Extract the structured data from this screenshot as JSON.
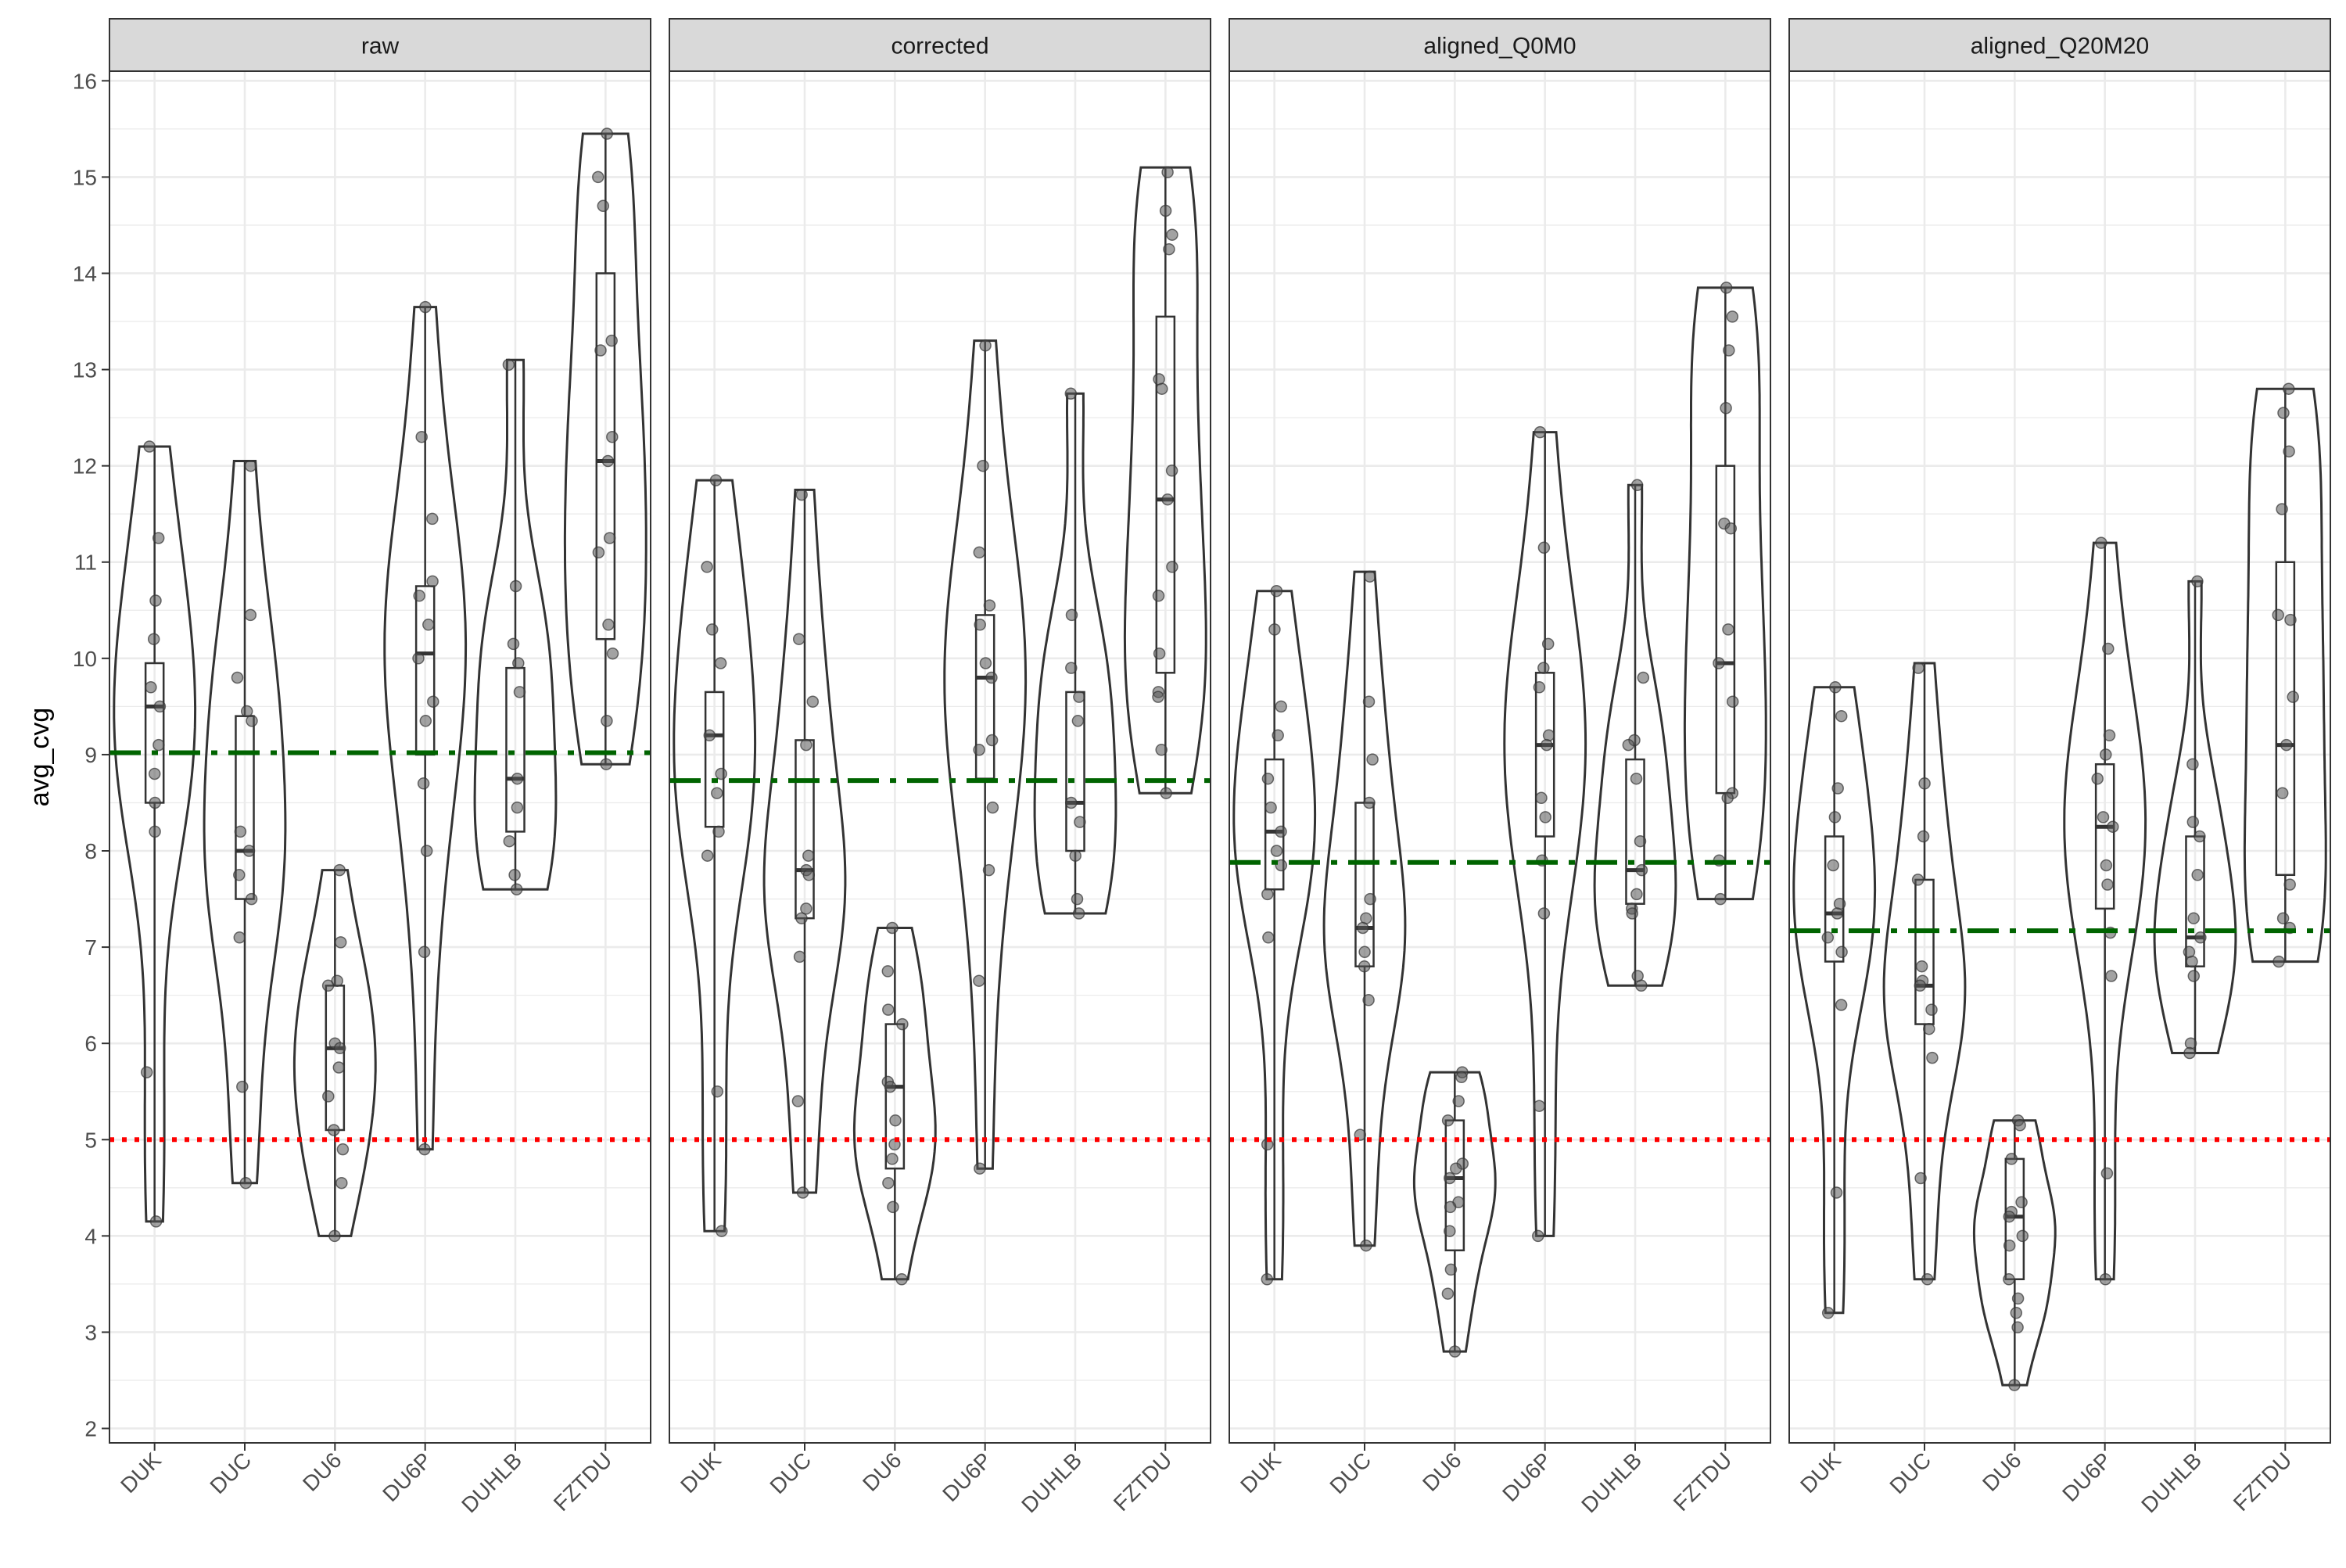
{
  "chart_data": {
    "type": "violin",
    "ylabel": "avg_cvg",
    "ylim": [
      1.85,
      16.1
    ],
    "yticks": [
      2,
      3,
      4,
      5,
      6,
      7,
      8,
      9,
      10,
      11,
      12,
      13,
      14,
      15,
      16
    ],
    "categories": [
      "DUK",
      "DUC",
      "DU6",
      "DU6P",
      "DUHLB",
      "FZTDU"
    ],
    "grid": true,
    "reference_lines": {
      "red_dotted": 5
    },
    "colors": {
      "violin": "#333333",
      "points": "#555555",
      "green_line": "#006400",
      "red_line": "#ff0000",
      "strip_bg": "#d9d9d9",
      "grid": "#ebebeb"
    },
    "panels": [
      {
        "title": "raw",
        "green_line": 9.02,
        "groups": [
          {
            "category": "DUK",
            "min": 4.15,
            "max": 12.2,
            "q1": 8.5,
            "median": 9.5,
            "q3": 9.95,
            "points": [
              12.2,
              11.25,
              10.6,
              10.2,
              9.7,
              9.5,
              9.1,
              8.8,
              8.5,
              8.2,
              5.7,
              4.15
            ]
          },
          {
            "category": "DUC",
            "min": 4.55,
            "max": 12.05,
            "q1": 7.5,
            "median": 8.0,
            "q3": 9.4,
            "points": [
              12.0,
              10.45,
              9.8,
              9.45,
              9.35,
              8.2,
              8.0,
              7.75,
              7.5,
              7.1,
              5.55,
              4.55
            ]
          },
          {
            "category": "DU6",
            "min": 4.0,
            "max": 7.8,
            "q1": 5.1,
            "median": 5.95,
            "q3": 6.6,
            "points": [
              7.8,
              7.05,
              6.65,
              6.6,
              6.0,
              5.95,
              5.75,
              5.45,
              5.1,
              4.9,
              4.55,
              4.0
            ]
          },
          {
            "category": "DU6P",
            "min": 4.9,
            "max": 13.65,
            "q1": 9.0,
            "median": 10.05,
            "q3": 10.75,
            "points": [
              13.65,
              12.3,
              11.45,
              10.8,
              10.65,
              10.35,
              10.0,
              9.55,
              9.35,
              8.7,
              8.0,
              6.95,
              4.9
            ]
          },
          {
            "category": "DUHLB",
            "min": 7.6,
            "max": 13.1,
            "q1": 8.2,
            "median": 8.75,
            "q3": 9.9,
            "points": [
              13.05,
              10.75,
              10.15,
              9.95,
              9.65,
              8.75,
              8.45,
              8.1,
              7.75,
              7.6
            ]
          },
          {
            "category": "FZTDU",
            "min": 8.9,
            "max": 15.45,
            "q1": 10.2,
            "median": 12.05,
            "q3": 14.0,
            "points": [
              15.45,
              15.0,
              14.7,
              13.3,
              13.2,
              12.3,
              12.05,
              11.25,
              11.1,
              10.35,
              10.05,
              9.35,
              8.9
            ]
          }
        ]
      },
      {
        "title": "corrected",
        "green_line": 8.73,
        "groups": [
          {
            "category": "DUK",
            "min": 4.05,
            "max": 11.85,
            "q1": 8.25,
            "median": 9.2,
            "q3": 9.65,
            "points": [
              11.85,
              10.95,
              10.3,
              9.95,
              9.2,
              8.8,
              8.6,
              8.2,
              7.95,
              5.5,
              4.05
            ]
          },
          {
            "category": "DUC",
            "min": 4.45,
            "max": 11.75,
            "q1": 7.3,
            "median": 7.8,
            "q3": 9.15,
            "points": [
              11.7,
              10.2,
              9.55,
              9.1,
              7.95,
              7.8,
              7.75,
              7.4,
              7.3,
              6.9,
              5.4,
              4.45
            ]
          },
          {
            "category": "DU6",
            "min": 3.55,
            "max": 7.2,
            "q1": 4.7,
            "median": 5.55,
            "q3": 6.2,
            "points": [
              7.2,
              6.75,
              6.35,
              6.2,
              5.6,
              5.55,
              5.2,
              4.95,
              4.8,
              4.55,
              4.3,
              3.55
            ]
          },
          {
            "category": "DU6P",
            "min": 4.7,
            "max": 13.3,
            "q1": 8.75,
            "median": 9.8,
            "q3": 10.45,
            "points": [
              13.25,
              12.0,
              11.1,
              10.55,
              10.35,
              9.95,
              9.8,
              9.15,
              9.05,
              8.45,
              7.8,
              6.65,
              4.7
            ]
          },
          {
            "category": "DUHLB",
            "min": 7.35,
            "max": 12.75,
            "q1": 8.0,
            "median": 8.5,
            "q3": 9.65,
            "points": [
              12.75,
              10.45,
              9.9,
              9.6,
              9.35,
              8.5,
              8.3,
              7.95,
              7.5,
              7.35
            ]
          },
          {
            "category": "FZTDU",
            "min": 8.6,
            "max": 15.1,
            "q1": 9.85,
            "median": 11.65,
            "q3": 13.55,
            "points": [
              15.05,
              14.65,
              14.4,
              14.25,
              12.9,
              12.8,
              11.95,
              11.65,
              10.95,
              10.65,
              10.05,
              9.65,
              9.6,
              9.05,
              8.6
            ]
          }
        ]
      },
      {
        "title": "aligned_Q0M0",
        "green_line": 7.88,
        "groups": [
          {
            "category": "DUK",
            "min": 3.55,
            "max": 10.7,
            "q1": 7.6,
            "median": 8.2,
            "q3": 8.95,
            "points": [
              10.7,
              10.3,
              9.5,
              9.2,
              8.75,
              8.45,
              8.2,
              8.0,
              7.85,
              7.55,
              7.1,
              4.95,
              3.55
            ]
          },
          {
            "category": "DUC",
            "min": 3.9,
            "max": 10.9,
            "q1": 6.8,
            "median": 7.2,
            "q3": 8.5,
            "points": [
              10.85,
              9.55,
              8.95,
              8.5,
              7.5,
              7.3,
              7.2,
              6.95,
              6.8,
              6.45,
              5.05,
              3.9
            ]
          },
          {
            "category": "DU6",
            "min": 2.8,
            "max": 5.7,
            "q1": 3.85,
            "median": 4.6,
            "q3": 5.2,
            "points": [
              5.7,
              5.65,
              5.4,
              5.2,
              4.75,
              4.7,
              4.6,
              4.35,
              4.3,
              4.05,
              3.65,
              3.4,
              2.8
            ]
          },
          {
            "category": "DU6P",
            "min": 4.0,
            "max": 12.35,
            "q1": 8.15,
            "median": 9.1,
            "q3": 9.85,
            "points": [
              12.35,
              11.15,
              10.15,
              9.9,
              9.7,
              9.2,
              9.1,
              8.55,
              8.35,
              7.9,
              7.35,
              5.35,
              4.0
            ]
          },
          {
            "category": "DUHLB",
            "min": 6.6,
            "max": 11.8,
            "q1": 7.45,
            "median": 7.8,
            "q3": 8.95,
            "points": [
              11.8,
              9.8,
              9.15,
              9.1,
              8.75,
              8.1,
              7.8,
              7.55,
              7.4,
              7.35,
              6.7,
              6.6
            ]
          },
          {
            "category": "FZTDU",
            "min": 7.5,
            "max": 13.85,
            "q1": 8.6,
            "median": 9.95,
            "q3": 12.0,
            "points": [
              13.85,
              13.55,
              13.2,
              12.6,
              11.4,
              11.35,
              10.3,
              9.95,
              9.55,
              8.6,
              8.55,
              7.9,
              7.5
            ]
          }
        ]
      },
      {
        "title": "aligned_Q20M20",
        "green_line": 7.17,
        "groups": [
          {
            "category": "DUK",
            "min": 3.2,
            "max": 9.7,
            "q1": 6.85,
            "median": 7.35,
            "q3": 8.15,
            "points": [
              9.7,
              9.4,
              8.65,
              8.35,
              7.85,
              7.45,
              7.35,
              7.1,
              6.95,
              6.4,
              4.45,
              3.2
            ]
          },
          {
            "category": "DUC",
            "min": 3.55,
            "max": 9.95,
            "q1": 6.2,
            "median": 6.6,
            "q3": 7.7,
            "points": [
              9.9,
              8.7,
              8.15,
              7.7,
              6.8,
              6.65,
              6.6,
              6.35,
              6.15,
              5.85,
              4.6,
              3.55
            ]
          },
          {
            "category": "DU6",
            "min": 2.45,
            "max": 5.2,
            "q1": 3.55,
            "median": 4.2,
            "q3": 4.8,
            "points": [
              5.2,
              5.15,
              4.8,
              4.35,
              4.25,
              4.2,
              4.0,
              3.9,
              3.55,
              3.35,
              3.2,
              3.05,
              2.45
            ]
          },
          {
            "category": "DU6P",
            "min": 3.55,
            "max": 11.2,
            "q1": 7.4,
            "median": 8.25,
            "q3": 8.9,
            "points": [
              11.2,
              10.1,
              9.2,
              9.0,
              8.75,
              8.35,
              8.25,
              7.85,
              7.65,
              7.15,
              6.7,
              4.65,
              3.55
            ]
          },
          {
            "category": "DUHLB",
            "min": 5.9,
            "max": 10.8,
            "q1": 6.8,
            "median": 7.1,
            "q3": 8.15,
            "points": [
              10.8,
              8.9,
              8.3,
              8.15,
              7.75,
              7.3,
              7.1,
              6.95,
              6.85,
              6.7,
              6.0,
              5.9
            ]
          },
          {
            "category": "FZTDU",
            "min": 6.85,
            "max": 12.8,
            "q1": 7.75,
            "median": 9.1,
            "q3": 11.0,
            "points": [
              12.8,
              12.55,
              12.15,
              11.55,
              10.45,
              10.4,
              9.6,
              9.1,
              8.6,
              7.65,
              7.3,
              7.2,
              6.85
            ]
          }
        ]
      }
    ]
  }
}
